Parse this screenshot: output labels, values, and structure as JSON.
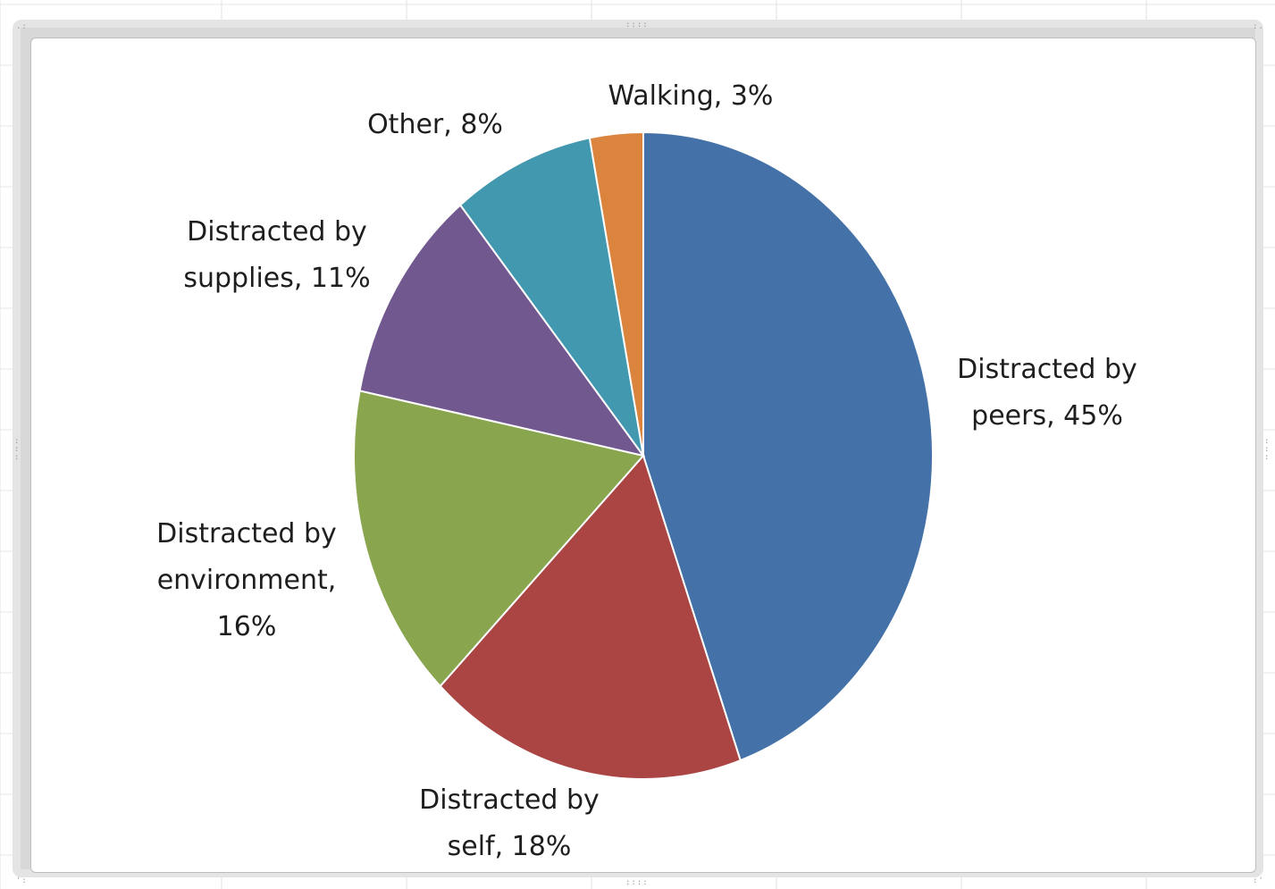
{
  "chart_data": {
    "type": "pie",
    "title": "",
    "categories": [
      "Distracted by peers",
      "Distracted by self",
      "Distracted by environment",
      "Distracted by supplies",
      "Other",
      "Walking"
    ],
    "values": [
      45,
      18,
      16,
      11,
      8,
      3
    ],
    "labels": [
      [
        "Distracted by",
        "peers, 45%"
      ],
      [
        "Distracted by",
        "self, 18%"
      ],
      [
        "Distracted by",
        "environment,",
        "16%"
      ],
      [
        "Distracted by",
        "supplies, 11%"
      ],
      [
        "Other, 8%"
      ],
      [
        "Walking, 3%"
      ]
    ],
    "colors": [
      "#4472a8",
      "#aa4543",
      "#89a54e",
      "#71588f",
      "#4198af",
      "#db843d"
    ],
    "legend": "none"
  }
}
